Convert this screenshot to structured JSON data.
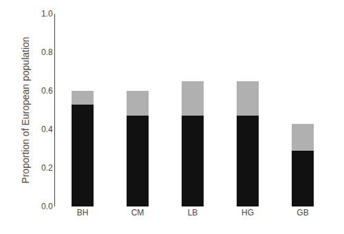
{
  "chart_data": {
    "type": "bar",
    "categories": [
      "BH",
      "CM",
      "LB",
      "HG",
      "GB"
    ],
    "series": [
      {
        "color": "#111111",
        "values": [
          0.53,
          0.47,
          0.47,
          0.47,
          0.29
        ]
      },
      {
        "color": "#b0b0b0",
        "values": [
          0.07,
          0.13,
          0.18,
          0.18,
          0.14
        ]
      }
    ],
    "stacked": true,
    "ylabel": "Proportion of European population",
    "ylim": [
      0.0,
      1.0
    ],
    "yticks": [
      {
        "value": 0.0,
        "label": "0.0"
      },
      0.2,
      0.4,
      0.6,
      0.8,
      {
        "value": 1.0,
        "label": "1.0"
      }
    ],
    "grid": false
  }
}
